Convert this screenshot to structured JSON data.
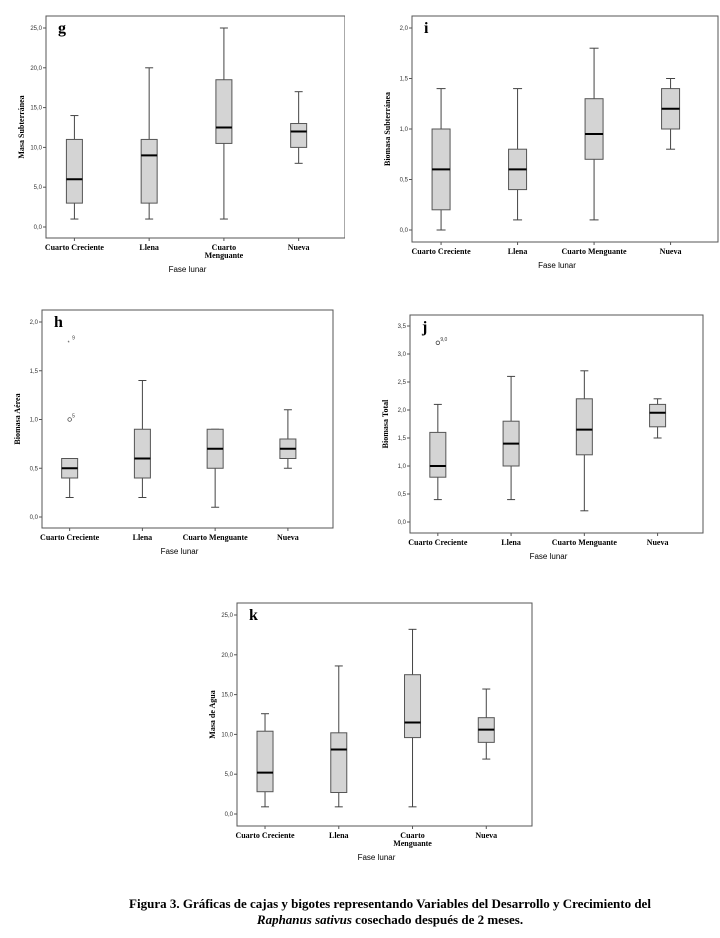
{
  "chart_data": [
    {
      "type": "box",
      "panel_label": "g",
      "title": "",
      "xlabel": "Fase lunar",
      "ylabel": "Masa Subterránea",
      "ylim": [
        0,
        25
      ],
      "yticks": [
        "0,0",
        "5,0",
        "10,0",
        "15,0",
        "20,0",
        "25,0"
      ],
      "ytick_values": [
        0,
        5,
        10,
        15,
        20,
        25
      ],
      "categories": [
        "Cuarto Creciente",
        "Llena",
        "Cuarto\nMenguante",
        "Nueva"
      ],
      "boxes": [
        {
          "min": 1,
          "q1": 3,
          "median": 6,
          "q3": 11,
          "max": 14,
          "outliers": []
        },
        {
          "min": 1,
          "q1": 3,
          "median": 9,
          "q3": 11,
          "max": 20,
          "outliers": []
        },
        {
          "min": 1,
          "q1": 10.5,
          "median": 12.5,
          "q3": 18.5,
          "max": 25,
          "outliers": []
        },
        {
          "min": 8,
          "q1": 10,
          "median": 12,
          "q3": 13,
          "max": 17,
          "outliers": []
        }
      ]
    },
    {
      "type": "box",
      "panel_label": "i",
      "title": "",
      "xlabel": "Fase lunar",
      "ylabel": "Biomasa Subterránea",
      "ylim": [
        0,
        2
      ],
      "yticks": [
        "0,0",
        "0,5",
        "1,0",
        "1,5",
        "2,0"
      ],
      "ytick_values": [
        0,
        0.5,
        1.0,
        1.5,
        2.0
      ],
      "categories": [
        "Cuarto Creciente",
        "Llena",
        "Cuarto Menguante",
        "Nueva"
      ],
      "boxes": [
        {
          "min": 0.0,
          "q1": 0.2,
          "median": 0.6,
          "q3": 1.0,
          "max": 1.4,
          "outliers": []
        },
        {
          "min": 0.1,
          "q1": 0.4,
          "median": 0.6,
          "q3": 0.8,
          "max": 1.4,
          "outliers": []
        },
        {
          "min": 0.1,
          "q1": 0.7,
          "median": 0.95,
          "q3": 1.3,
          "max": 1.8,
          "outliers": []
        },
        {
          "min": 0.8,
          "q1": 1.0,
          "median": 1.2,
          "q3": 1.4,
          "max": 1.5,
          "outliers": []
        }
      ]
    },
    {
      "type": "box",
      "panel_label": "h",
      "title": "",
      "xlabel": "Fase lunar",
      "ylabel": "Biomasa Aérea",
      "ylim": [
        0,
        2
      ],
      "yticks": [
        "0,0",
        "0,5",
        "1,0",
        "1,5",
        "2,0"
      ],
      "ytick_values": [
        0,
        0.5,
        1.0,
        1.5,
        2.0
      ],
      "categories": [
        "Cuarto Creciente",
        "Llena",
        "Cuarto Menguante",
        "Nueva"
      ],
      "boxes": [
        {
          "min": 0.2,
          "q1": 0.4,
          "median": 0.5,
          "q3": 0.6,
          "max": 0.6,
          "outliers": [
            {
              "value": 1.8,
              "marker": "star",
              "label": "9"
            },
            {
              "value": 1.0,
              "marker": "circle",
              "label": "5"
            }
          ]
        },
        {
          "min": 0.2,
          "q1": 0.4,
          "median": 0.6,
          "q3": 0.9,
          "max": 1.4,
          "outliers": []
        },
        {
          "min": 0.1,
          "q1": 0.5,
          "median": 0.7,
          "q3": 0.9,
          "max": 0.9,
          "outliers": []
        },
        {
          "min": 0.5,
          "q1": 0.6,
          "median": 0.7,
          "q3": 0.8,
          "max": 1.1,
          "outliers": []
        }
      ]
    },
    {
      "type": "box",
      "panel_label": "j",
      "title": "",
      "xlabel": "Fase lunar",
      "ylabel": "Biomasa Total",
      "ylim": [
        0,
        3.5
      ],
      "yticks": [
        "0,0",
        "0,5",
        "1,0",
        "1,5",
        "2,0",
        "2,5",
        "3,0",
        "3,5"
      ],
      "ytick_values": [
        0,
        0.5,
        1.0,
        1.5,
        2.0,
        2.5,
        3.0,
        3.5
      ],
      "categories": [
        "Cuarto Creciente",
        "Llena",
        "Cuarto Menguante",
        "Nueva"
      ],
      "boxes": [
        {
          "min": 0.4,
          "q1": 0.8,
          "median": 1.0,
          "q3": 1.6,
          "max": 2.1,
          "outliers": [
            {
              "value": 3.2,
              "marker": "circle",
              "label": "9,0"
            }
          ]
        },
        {
          "min": 0.4,
          "q1": 1.0,
          "median": 1.4,
          "q3": 1.8,
          "max": 2.6,
          "outliers": []
        },
        {
          "min": 0.2,
          "q1": 1.2,
          "median": 1.65,
          "q3": 2.2,
          "max": 2.7,
          "outliers": []
        },
        {
          "min": 1.5,
          "q1": 1.7,
          "median": 1.95,
          "q3": 2.1,
          "max": 2.2,
          "outliers": []
        }
      ]
    },
    {
      "type": "box",
      "panel_label": "k",
      "title": "",
      "xlabel": "Fase lunar",
      "ylabel": "Masa de Agua",
      "ylim": [
        0,
        25
      ],
      "yticks": [
        "0,0",
        "5,0",
        "10,0",
        "15,0",
        "20,0",
        "25,0"
      ],
      "ytick_values": [
        0,
        5,
        10,
        15,
        20,
        25
      ],
      "categories": [
        "Cuarto Creciente",
        "Llena",
        "Cuarto\nMenguante",
        "Nueva"
      ],
      "boxes": [
        {
          "min": 0.9,
          "q1": 2.8,
          "median": 5.2,
          "q3": 10.4,
          "max": 12.6,
          "outliers": []
        },
        {
          "min": 0.9,
          "q1": 2.7,
          "median": 8.1,
          "q3": 10.2,
          "max": 18.6,
          "outliers": []
        },
        {
          "min": 0.9,
          "q1": 9.6,
          "median": 11.5,
          "q3": 17.5,
          "max": 23.2,
          "outliers": []
        },
        {
          "min": 6.9,
          "q1": 9.0,
          "median": 10.6,
          "q3": 12.1,
          "max": 15.7,
          "outliers": []
        }
      ]
    }
  ],
  "caption": {
    "line1": "Figura 3. Gráficas de cajas y bigotes representando Variables del Desarrollo y Crecimiento del",
    "line2_italic": "Raphanus sativus",
    "line2_rest": " cosechado después de 2 meses."
  },
  "colors": {
    "box_fill": "#d4d4d4",
    "frame": "#555555",
    "median": "#000000",
    "whisker": "#444444"
  }
}
